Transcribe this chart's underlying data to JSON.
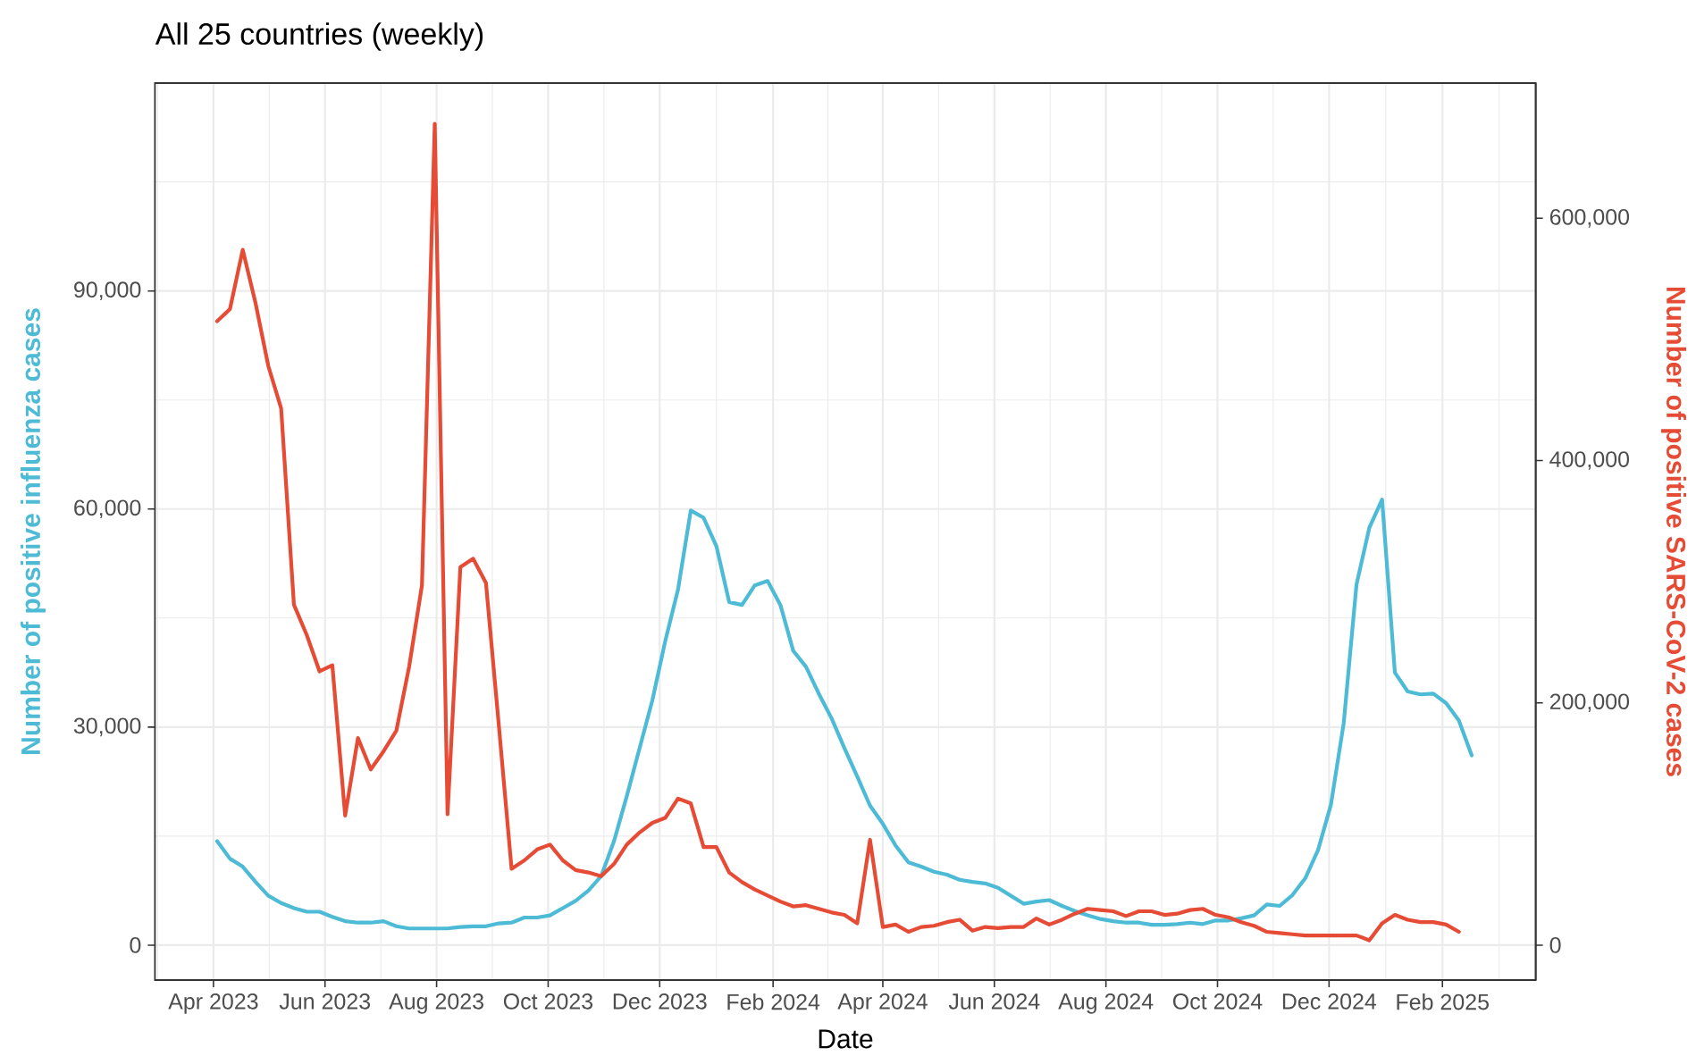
{
  "chart_data": {
    "type": "line",
    "title": "All 25 countries (weekly)",
    "xlabel": "Date",
    "ylabel": "Number of positive influenza cases",
    "y2label": "Number of positive SARS-CoV-2 cases",
    "x": [
      "2023-04-03",
      "2023-04-10",
      "2023-04-17",
      "2023-04-24",
      "2023-05-01",
      "2023-05-08",
      "2023-05-15",
      "2023-05-22",
      "2023-05-29",
      "2023-06-05",
      "2023-06-12",
      "2023-06-19",
      "2023-06-26",
      "2023-07-03",
      "2023-07-10",
      "2023-07-17",
      "2023-07-24",
      "2023-07-31",
      "2023-08-07",
      "2023-08-14",
      "2023-08-21",
      "2023-08-28",
      "2023-09-04",
      "2023-09-11",
      "2023-09-18",
      "2023-09-25",
      "2023-10-02",
      "2023-10-09",
      "2023-10-16",
      "2023-10-23",
      "2023-10-30",
      "2023-11-06",
      "2023-11-13",
      "2023-11-20",
      "2023-11-27",
      "2023-12-04",
      "2023-12-11",
      "2023-12-18",
      "2023-12-25",
      "2024-01-01",
      "2024-01-08",
      "2024-01-15",
      "2024-01-22",
      "2024-01-29",
      "2024-02-05",
      "2024-02-12",
      "2024-02-19",
      "2024-02-26",
      "2024-03-04",
      "2024-03-11",
      "2024-03-18",
      "2024-03-25",
      "2024-04-01",
      "2024-04-08",
      "2024-04-15",
      "2024-04-22",
      "2024-04-29",
      "2024-05-06",
      "2024-05-13",
      "2024-05-20",
      "2024-05-27",
      "2024-06-03",
      "2024-06-10",
      "2024-06-17",
      "2024-06-24",
      "2024-07-01",
      "2024-07-08",
      "2024-07-15",
      "2024-07-22",
      "2024-07-29",
      "2024-08-05",
      "2024-08-12",
      "2024-08-19",
      "2024-08-26",
      "2024-09-02",
      "2024-09-09",
      "2024-09-16",
      "2024-09-23",
      "2024-09-30",
      "2024-10-07",
      "2024-10-14",
      "2024-10-21",
      "2024-10-28",
      "2024-11-04",
      "2024-11-11",
      "2024-11-18",
      "2024-11-25",
      "2024-12-02",
      "2024-12-09",
      "2024-12-16",
      "2024-12-23",
      "2024-12-30",
      "2025-01-06",
      "2025-01-13",
      "2025-01-20",
      "2025-01-27",
      "2025-02-03",
      "2025-02-10",
      "2025-02-17"
    ],
    "series": [
      {
        "color": "#4dbbd5",
        "values": [
          14300,
          11900,
          10800,
          8700,
          6800,
          5800,
          5100,
          4600,
          4600,
          3900,
          3300,
          3100,
          3100,
          3300,
          2600,
          2300,
          2300,
          2300,
          2300,
          2500,
          2600,
          2600,
          3000,
          3100,
          3800,
          3800,
          4100,
          5100,
          6100,
          7500,
          9500,
          14300,
          20500,
          27100,
          33700,
          41800,
          48900,
          59800,
          58800,
          54900,
          47200,
          46800,
          49500,
          50100,
          46800,
          40500,
          38300,
          34600,
          31200,
          27100,
          23200,
          19200,
          16700,
          13700,
          11400,
          10800,
          10100,
          9700,
          9000,
          8700,
          8500,
          7900,
          6800,
          5700,
          6000,
          6200,
          5400,
          4700,
          4100,
          3600,
          3300,
          3100,
          3100,
          2800,
          2800,
          2900,
          3100,
          2900,
          3400,
          3400,
          3700,
          4100,
          5600,
          5400,
          6900,
          9200,
          13100,
          19300,
          30500,
          49600,
          57400,
          61300,
          37500,
          34900,
          34500,
          34600,
          33300,
          30900,
          26100
        ]
      },
      {
        "color": "#e64b35",
        "axis": "y2",
        "values": [
          515000,
          525000,
          574000,
          530000,
          478000,
          443000,
          281000,
          256000,
          226000,
          231000,
          107000,
          171000,
          145000,
          160000,
          177000,
          230000,
          297000,
          678000,
          108000,
          312000,
          319000,
          299000,
          182000,
          63000,
          70000,
          79000,
          83000,
          70000,
          62000,
          60000,
          57000,
          67000,
          83000,
          93000,
          101000,
          105000,
          121000,
          117000,
          81000,
          81000,
          60000,
          52000,
          46000,
          41000,
          36000,
          32000,
          33000,
          30000,
          27000,
          25000,
          18000,
          87000,
          15000,
          17000,
          11000,
          15000,
          16000,
          19000,
          21000,
          12000,
          15000,
          14000,
          15000,
          15000,
          22000,
          17000,
          21000,
          26000,
          30000,
          29000,
          28000,
          24000,
          28000,
          28000,
          25000,
          26000,
          29000,
          30000,
          25000,
          23000,
          19000,
          16000,
          11000,
          10000,
          9000,
          8000,
          8000,
          8000,
          8000,
          8000,
          4000,
          18000,
          25000,
          21000,
          19000,
          19000,
          17000,
          11000,
          null
        ]
      }
    ],
    "xlim": [
      "2023-02-28",
      "2025-03-24"
    ],
    "xticks": [
      {
        "value": "2023-04-01",
        "label": "Apr 2023"
      },
      {
        "value": "2023-06-01",
        "label": "Jun 2023"
      },
      {
        "value": "2023-08-01",
        "label": "Aug 2023"
      },
      {
        "value": "2023-10-01",
        "label": "Oct 2023"
      },
      {
        "value": "2023-12-01",
        "label": "Dec 2023"
      },
      {
        "value": "2024-02-01",
        "label": "Feb 2024"
      },
      {
        "value": "2024-04-01",
        "label": "Apr 2024"
      },
      {
        "value": "2024-06-01",
        "label": "Jun 2024"
      },
      {
        "value": "2024-08-01",
        "label": "Aug 2024"
      },
      {
        "value": "2024-10-01",
        "label": "Oct 2024"
      },
      {
        "value": "2024-12-01",
        "label": "Dec 2024"
      },
      {
        "value": "2025-02-01",
        "label": "Feb 2025"
      }
    ],
    "ylim": [
      -4800,
      118600
    ],
    "yticks": [
      0,
      {
        "value": 30000,
        "label": "30,000"
      },
      {
        "value": 60000,
        "label": "60,000"
      },
      {
        "value": 90000,
        "label": "90,000"
      }
    ],
    "y2lim": [
      -28800,
      711600
    ],
    "y2ticks": [
      0,
      {
        "value": 200000,
        "label": "200,000"
      },
      {
        "value": 400000,
        "label": "400,000"
      },
      {
        "value": 600000,
        "label": "600,000"
      }
    ],
    "grid": true,
    "line_style": "solid"
  }
}
